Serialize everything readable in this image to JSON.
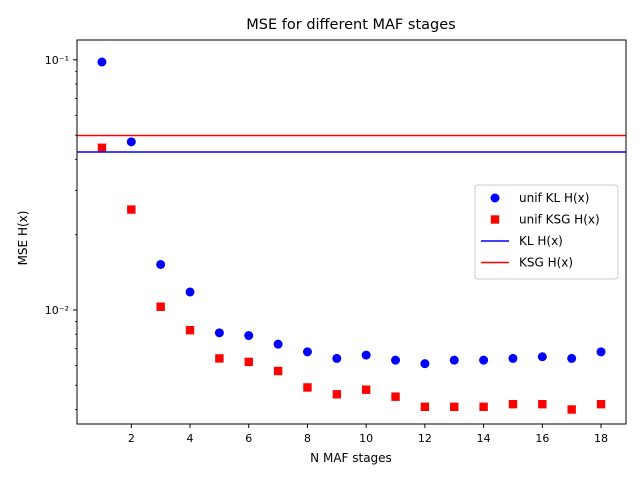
{
  "chart_data": {
    "type": "scatter",
    "title": "MSE for different MAF stages",
    "xlabel": "N MAF stages",
    "ylabel": "MSE H(x)",
    "xlim": [
      0.15,
      18.85
    ],
    "ylim": [
      0.0035,
      0.12
    ],
    "yscale": "log",
    "grid": false,
    "legend_position": "center-right",
    "x_ticks": [
      2,
      4,
      6,
      8,
      10,
      12,
      14,
      16,
      18
    ],
    "y_ticks": [
      {
        "value": 0.1,
        "label": "10⁻¹"
      },
      {
        "value": 0.01,
        "label": "10⁻²"
      }
    ],
    "x": [
      1,
      2,
      3,
      4,
      5,
      6,
      7,
      8,
      9,
      10,
      11,
      12,
      13,
      14,
      15,
      16,
      17,
      18
    ],
    "series": [
      {
        "name": "unif KL H(x)",
        "kind": "points",
        "marker": "circle",
        "color": "#0000ff",
        "values": [
          0.098,
          0.047,
          0.0152,
          0.0118,
          0.0081,
          0.0079,
          0.0073,
          0.0068,
          0.0064,
          0.0066,
          0.0063,
          0.0061,
          0.0063,
          0.0063,
          0.0064,
          0.0065,
          0.0064,
          0.0068
        ]
      },
      {
        "name": "unif KSG H(x)",
        "kind": "points",
        "marker": "square",
        "color": "#ff0000",
        "values": [
          0.0445,
          0.0252,
          0.0103,
          0.0083,
          0.0064,
          0.0062,
          0.0057,
          0.0049,
          0.0046,
          0.0048,
          0.0045,
          0.0041,
          0.0041,
          0.0041,
          0.0042,
          0.0042,
          0.004,
          0.0042
        ]
      },
      {
        "name": "KL H(x)",
        "kind": "hline",
        "color": "#0000ff",
        "value": 0.0428
      },
      {
        "name": "KSG H(x)",
        "kind": "hline",
        "color": "#ff0000",
        "value": 0.0498
      }
    ]
  }
}
